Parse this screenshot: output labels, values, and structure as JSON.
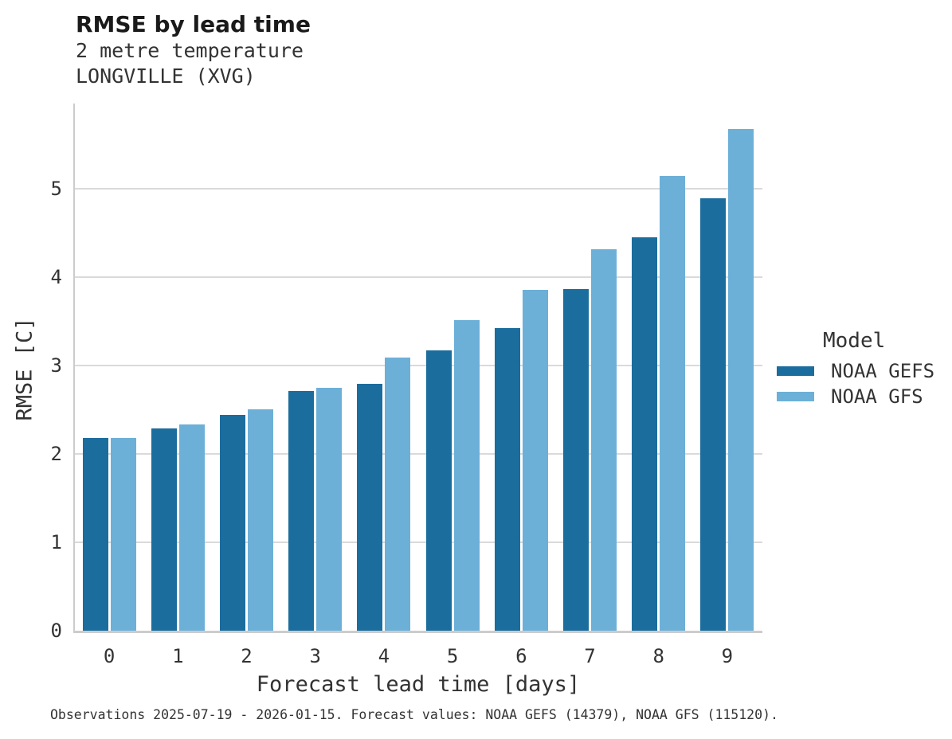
{
  "chart_data": {
    "type": "bar",
    "title": "RMSE by lead time",
    "subtitle": "2 metre temperature",
    "subtitle2": "LONGVILLE (XVG)",
    "xlabel": "Forecast lead time [days]",
    "ylabel": "RMSE [C]",
    "categories": [
      "0",
      "1",
      "2",
      "3",
      "4",
      "5",
      "6",
      "7",
      "8",
      "9"
    ],
    "series": [
      {
        "name": "NOAA GEFS",
        "color": "#1b6d9d",
        "values": [
          2.18,
          2.29,
          2.44,
          2.71,
          2.79,
          3.17,
          3.42,
          3.86,
          4.45,
          4.89
        ]
      },
      {
        "name": "NOAA GFS",
        "color": "#6cb0d8",
        "values": [
          2.18,
          2.33,
          2.5,
          2.75,
          3.09,
          3.51,
          3.85,
          4.31,
          5.14,
          5.67
        ]
      }
    ],
    "ylim": [
      0,
      5.96
    ],
    "yticks": [
      0,
      1,
      2,
      3,
      4,
      5
    ],
    "grid": true,
    "legend_title": "Model",
    "legend_position": "right",
    "caption": "Observations 2025-07-19 - 2026-01-15. Forecast values: NOAA GEFS (14379), NOAA GFS (115120)."
  },
  "colors": {
    "gridline": "#dadada",
    "spine": "#cccccc",
    "text": "#333333",
    "title": "#1a1a1a",
    "background": "#ffffff"
  }
}
